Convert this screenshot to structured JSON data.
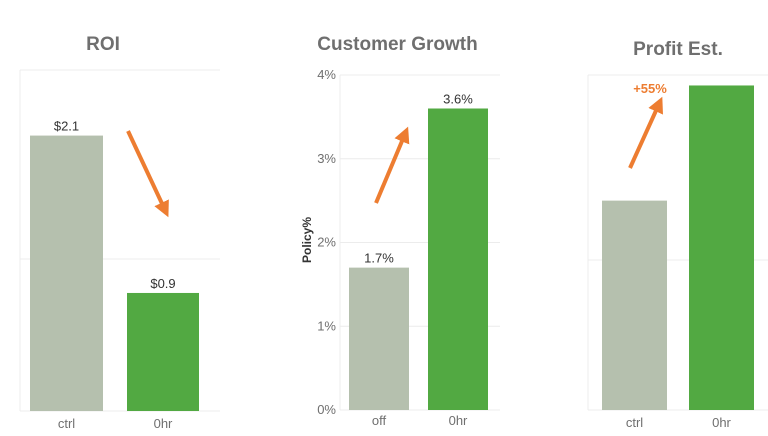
{
  "colors": {
    "control": "#b5c0ae",
    "treatment": "#52a942",
    "arrow": "#ed7d31"
  },
  "chart_data": [
    {
      "type": "bar",
      "title": "ROI",
      "categories": [
        "ctrl",
        "0hr"
      ],
      "values": [
        2.1,
        0.9
      ],
      "data_labels": [
        "$2.1",
        "$0.9"
      ],
      "ylim": [
        0,
        2.6
      ],
      "annotation": {
        "type": "arrow",
        "direction": "down"
      }
    },
    {
      "type": "bar",
      "title": "Customer Growth",
      "categories": [
        "off",
        "0hr"
      ],
      "values": [
        1.7,
        3.6
      ],
      "data_labels": [
        "1.7%",
        "3.6%"
      ],
      "ylabel": "Policy%",
      "yticks": [
        "0%",
        "1%",
        "2%",
        "3%",
        "4%"
      ],
      "ylim": [
        0,
        4
      ],
      "annotation": {
        "type": "arrow",
        "direction": "up"
      }
    },
    {
      "type": "bar",
      "title": "Profit Est.",
      "categories": [
        "ctrl",
        "0hr"
      ],
      "values": [
        1.0,
        1.55
      ],
      "ylim": [
        0,
        1.6
      ],
      "annotation": {
        "type": "arrow",
        "direction": "up",
        "label": "+55%"
      }
    }
  ]
}
